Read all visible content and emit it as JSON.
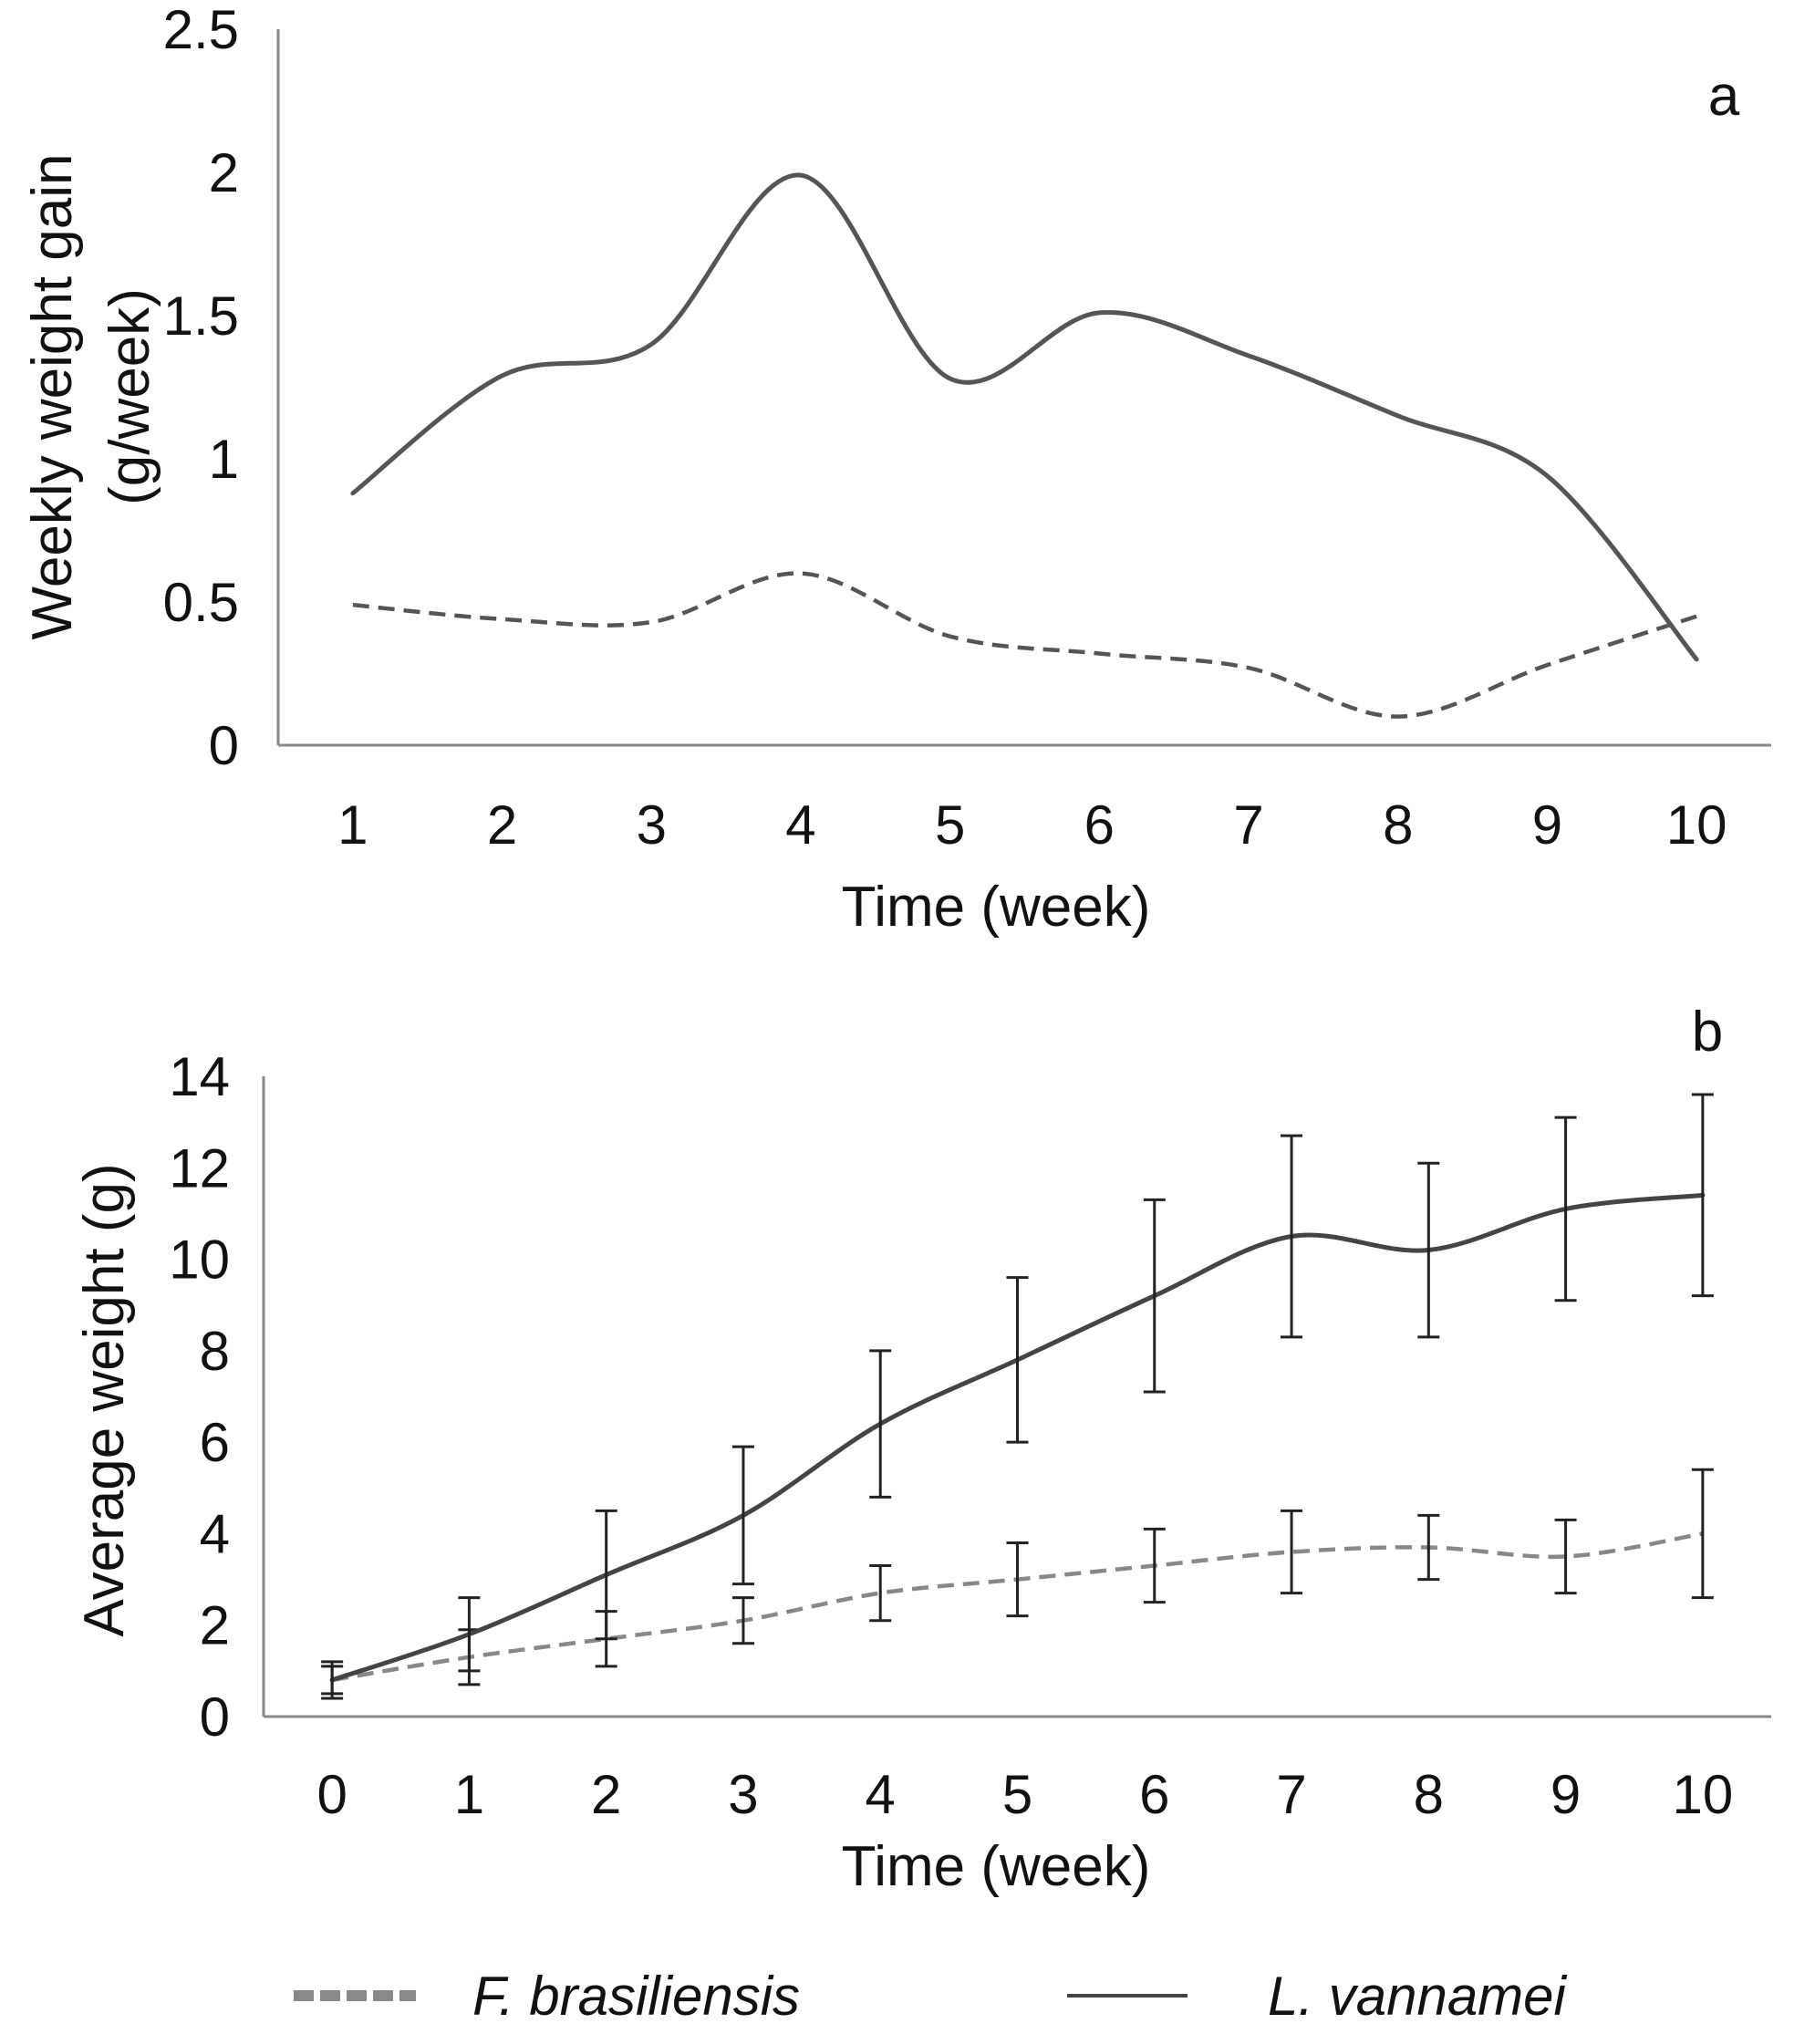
{
  "chart_data": [
    {
      "panel": "a",
      "type": "line",
      "panel_label": "a",
      "xlabel": "Time (week)",
      "ylabel": [
        "Weekly weight gain",
        "(g/week)"
      ],
      "categories": [
        1,
        2,
        3,
        4,
        5,
        6,
        7,
        8,
        9,
        10
      ],
      "xlim": [
        0.5,
        10.5
      ],
      "ylim": [
        0,
        2.5
      ],
      "yticks": [
        0,
        0.5,
        1,
        1.5,
        2,
        2.5
      ],
      "ytick_labels": [
        "0",
        "0.5",
        "1",
        "1.5",
        "2",
        "2.5"
      ],
      "grid": false,
      "series": [
        {
          "name": "F. brasiliensis",
          "style": "dashed",
          "color": "#555555",
          "values": [
            0.49,
            0.44,
            0.43,
            0.6,
            0.38,
            0.32,
            0.27,
            0.1,
            0.28,
            0.45
          ]
        },
        {
          "name": "L. vannamei",
          "style": "solid",
          "color": "#555555",
          "values": [
            0.88,
            1.29,
            1.4,
            1.99,
            1.28,
            1.51,
            1.36,
            1.15,
            0.94,
            0.3
          ]
        }
      ]
    },
    {
      "panel": "b",
      "type": "line",
      "panel_label": "b",
      "xlabel": "Time (week)",
      "ylabel": "Average weight (g)",
      "categories": [
        0,
        1,
        2,
        3,
        4,
        5,
        6,
        7,
        8,
        9,
        10
      ],
      "xlim": [
        -0.5,
        10.5
      ],
      "ylim": [
        0,
        14
      ],
      "yticks": [
        0,
        2,
        4,
        6,
        8,
        10,
        12,
        14
      ],
      "ytick_labels": [
        "0",
        "2",
        "4",
        "6",
        "8",
        "10",
        "12",
        "14"
      ],
      "grid": false,
      "series": [
        {
          "name": "F. brasiliensis",
          "style": "dashed",
          "color": "#888888",
          "values": [
            0.8,
            1.3,
            1.7,
            2.1,
            2.7,
            3.0,
            3.3,
            3.6,
            3.7,
            3.5,
            4.0
          ],
          "errors": [
            0.3,
            0.6,
            0.6,
            0.5,
            0.6,
            0.8,
            0.8,
            0.9,
            0.7,
            0.8,
            1.4
          ]
        },
        {
          "name": "L. vannamei",
          "style": "solid",
          "color": "#444444",
          "values": [
            0.8,
            1.8,
            3.1,
            4.4,
            6.4,
            7.8,
            9.2,
            10.5,
            10.2,
            11.1,
            11.4
          ],
          "errors": [
            0.4,
            0.8,
            1.4,
            1.5,
            1.6,
            1.8,
            2.1,
            2.2,
            1.9,
            2.0,
            2.2
          ]
        }
      ]
    }
  ],
  "legend": {
    "position": "bottom",
    "entries": [
      {
        "label": "F. brasiliensis",
        "style": "dotted-thick",
        "color": "#888888"
      },
      {
        "label": "L. vannamei",
        "style": "solid",
        "color": "#444444"
      }
    ]
  }
}
